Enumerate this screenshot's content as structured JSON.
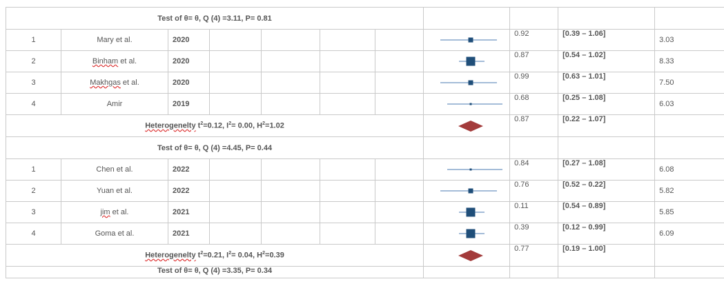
{
  "groups": [
    {
      "test": "Test of θ= θ, Q (4) =3.11, P= 0.81",
      "studies": [
        {
          "num": "1",
          "name": "Mary et al.",
          "underline": "",
          "name_rest": "",
          "year": "2020",
          "es": "0.92",
          "ci": "[0.39 – 1.06]",
          "weight": "3.03",
          "marker": "medium"
        },
        {
          "num": "2",
          "name": "",
          "underline": "Binham",
          "name_rest": " et al.",
          "year": "2020",
          "es": "0.87",
          "ci": "[0.54 – 1.02]",
          "weight": "8.33",
          "marker": "large"
        },
        {
          "num": "3",
          "name": "",
          "underline": "Makhgas",
          "name_rest": " et al.",
          "year": "2020",
          "es": "0.99",
          "ci": "[0.63 – 1.01]",
          "weight": "7.50",
          "marker": "medium"
        },
        {
          "num": "4",
          "name": "Amir",
          "underline": "",
          "name_rest": "",
          "year": "2019",
          "es": "0.68",
          "ci": "[0.25 – 1.08]",
          "weight": "6.03",
          "marker": "small"
        }
      ],
      "heterogeneity": {
        "label": "Heterogenelty",
        "t2": "=0.12, ",
        "i2": "= 0.00, ",
        "h2": "=1.02",
        "es": "0.87",
        "ci": "[0.22 – 1.07]"
      }
    },
    {
      "test": "Test of θ= θ, Q (4) =4.45, P= 0.44",
      "studies": [
        {
          "num": "1",
          "name": "Chen et al.",
          "underline": "",
          "name_rest": "",
          "year": "2022",
          "es": "0.84",
          "ci": "[0.27 – 1.08]",
          "weight": "6.08",
          "marker": "small"
        },
        {
          "num": "2",
          "name": "Yuan et al.",
          "underline": "",
          "name_rest": "",
          "year": "2022",
          "es": "0.76",
          "ci": "[0.52 – 0.22]",
          "weight": "5.82",
          "marker": "medium"
        },
        {
          "num": "3",
          "name": "",
          "underline": "jim",
          "name_rest": " et al.",
          "year": "2021",
          "es": "0.11",
          "ci": "[0.54 – 0.89]",
          "weight": "5.85",
          "marker": "large"
        },
        {
          "num": "4",
          "name": "Goma et al.",
          "underline": "",
          "name_rest": "",
          "year": "2021",
          "es": "0.39",
          "ci": "[0.12 – 0.99]",
          "weight": "6.09",
          "marker": "large"
        }
      ],
      "heterogeneity": {
        "label": "Heterogenelty",
        "t2": "=0.21, ",
        "i2": "= 0.04, ",
        "h2": "=0.39",
        "es": "0.77",
        "ci": "[0.19 – 1.00]"
      }
    }
  ],
  "trailing_test": "Test of θ= θ, Q (4) =3.35, P= 0.34",
  "colors": {
    "marker": "#1f4e79",
    "diamond": "#a33b3b",
    "line": "#4a78b0"
  }
}
